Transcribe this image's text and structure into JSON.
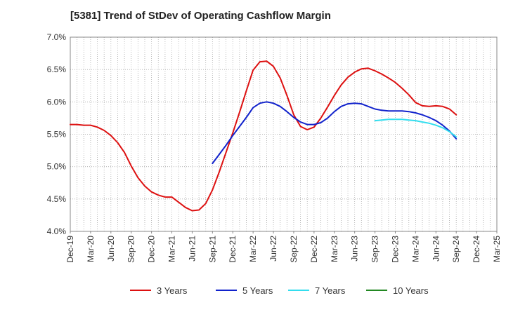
{
  "chart_data": {
    "type": "line",
    "title": "[5381]  Trend of StDev of Operating Cashflow Margin",
    "xlabel": "",
    "ylabel": "",
    "ylim": [
      4.0,
      7.0
    ],
    "yticks": [
      "4.0%",
      "4.5%",
      "5.0%",
      "5.5%",
      "6.0%",
      "6.5%",
      "7.0%"
    ],
    "xticks": [
      "Dec-19",
      "Mar-20",
      "Jun-20",
      "Sep-20",
      "Dec-20",
      "Mar-21",
      "Jun-21",
      "Sep-21",
      "Dec-21",
      "Mar-22",
      "Jun-22",
      "Sep-22",
      "Dec-22",
      "Mar-23",
      "Jun-23",
      "Sep-23",
      "Dec-23",
      "Mar-24",
      "Jun-24",
      "Sep-24",
      "Dec-24",
      "Mar-25"
    ],
    "grid": true,
    "legend_position": "bottom",
    "x_start": "Dec-19",
    "x_end": "Mar-25",
    "series": [
      {
        "name": "3 Years",
        "color": "#dd1111",
        "x": [
          "Dec-19",
          "Jan-20",
          "Feb-20",
          "Mar-20",
          "Apr-20",
          "May-20",
          "Jun-20",
          "Jul-20",
          "Aug-20",
          "Sep-20",
          "Oct-20",
          "Nov-20",
          "Dec-20",
          "Jan-21",
          "Feb-21",
          "Mar-21",
          "Apr-21",
          "May-21",
          "Jun-21",
          "Jul-21",
          "Aug-21",
          "Sep-21",
          "Oct-21",
          "Nov-21",
          "Dec-21",
          "Jan-22",
          "Feb-22",
          "Mar-22",
          "Apr-22",
          "May-22",
          "Jun-22",
          "Jul-22",
          "Aug-22",
          "Sep-22",
          "Oct-22",
          "Nov-22",
          "Dec-22",
          "Jan-23",
          "Feb-23",
          "Mar-23",
          "Apr-23",
          "May-23",
          "Jun-23",
          "Jul-23",
          "Aug-23",
          "Sep-23",
          "Oct-23",
          "Nov-23",
          "Dec-23",
          "Jan-24",
          "Feb-24",
          "Mar-24",
          "Apr-24",
          "May-24",
          "Jun-24",
          "Jul-24",
          "Aug-24",
          "Sep-24"
        ],
        "values": [
          5.65,
          5.65,
          5.64,
          5.64,
          5.61,
          5.56,
          5.48,
          5.37,
          5.22,
          5.01,
          4.83,
          4.7,
          4.61,
          4.56,
          4.53,
          4.53,
          4.45,
          4.37,
          4.32,
          4.33,
          4.43,
          4.64,
          4.92,
          5.22,
          5.52,
          5.84,
          6.17,
          6.49,
          6.62,
          6.63,
          6.55,
          6.37,
          6.1,
          5.8,
          5.62,
          5.57,
          5.61,
          5.75,
          5.92,
          6.1,
          6.26,
          6.38,
          6.46,
          6.51,
          6.52,
          6.48,
          6.43,
          6.37,
          6.3,
          6.21,
          6.11,
          5.99,
          5.94,
          5.93,
          5.94,
          5.93,
          5.89,
          5.8
        ]
      },
      {
        "name": "5 Years",
        "color": "#1122cc",
        "x": [
          "Sep-21",
          "Oct-21",
          "Nov-21",
          "Dec-21",
          "Jan-22",
          "Feb-22",
          "Mar-22",
          "Apr-22",
          "May-22",
          "Jun-22",
          "Jul-22",
          "Aug-22",
          "Sep-22",
          "Oct-22",
          "Nov-22",
          "Dec-22",
          "Jan-23",
          "Feb-23",
          "Mar-23",
          "Apr-23",
          "May-23",
          "Jun-23",
          "Jul-23",
          "Aug-23",
          "Sep-23",
          "Oct-23",
          "Nov-23",
          "Dec-23",
          "Jan-24",
          "Feb-24",
          "Mar-24",
          "Apr-24",
          "May-24",
          "Jun-24",
          "Jul-24",
          "Aug-24",
          "Sep-24"
        ],
        "values": [
          5.05,
          5.19,
          5.33,
          5.48,
          5.62,
          5.76,
          5.91,
          5.98,
          6.0,
          5.98,
          5.93,
          5.85,
          5.76,
          5.69,
          5.65,
          5.65,
          5.68,
          5.75,
          5.85,
          5.93,
          5.97,
          5.98,
          5.97,
          5.93,
          5.89,
          5.87,
          5.86,
          5.86,
          5.86,
          5.85,
          5.83,
          5.8,
          5.76,
          5.71,
          5.64,
          5.55,
          5.43
        ]
      },
      {
        "name": "7 Years",
        "color": "#33ddee",
        "x": [
          "Sep-23",
          "Oct-23",
          "Nov-23",
          "Dec-23",
          "Jan-24",
          "Feb-24",
          "Mar-24",
          "Apr-24",
          "May-24",
          "Jun-24",
          "Jul-24",
          "Aug-24",
          "Sep-24"
        ],
        "values": [
          5.71,
          5.72,
          5.73,
          5.73,
          5.73,
          5.72,
          5.71,
          5.69,
          5.67,
          5.64,
          5.6,
          5.54,
          5.46
        ]
      },
      {
        "name": "10 Years",
        "color": "#228822",
        "x": [],
        "values": []
      }
    ]
  }
}
